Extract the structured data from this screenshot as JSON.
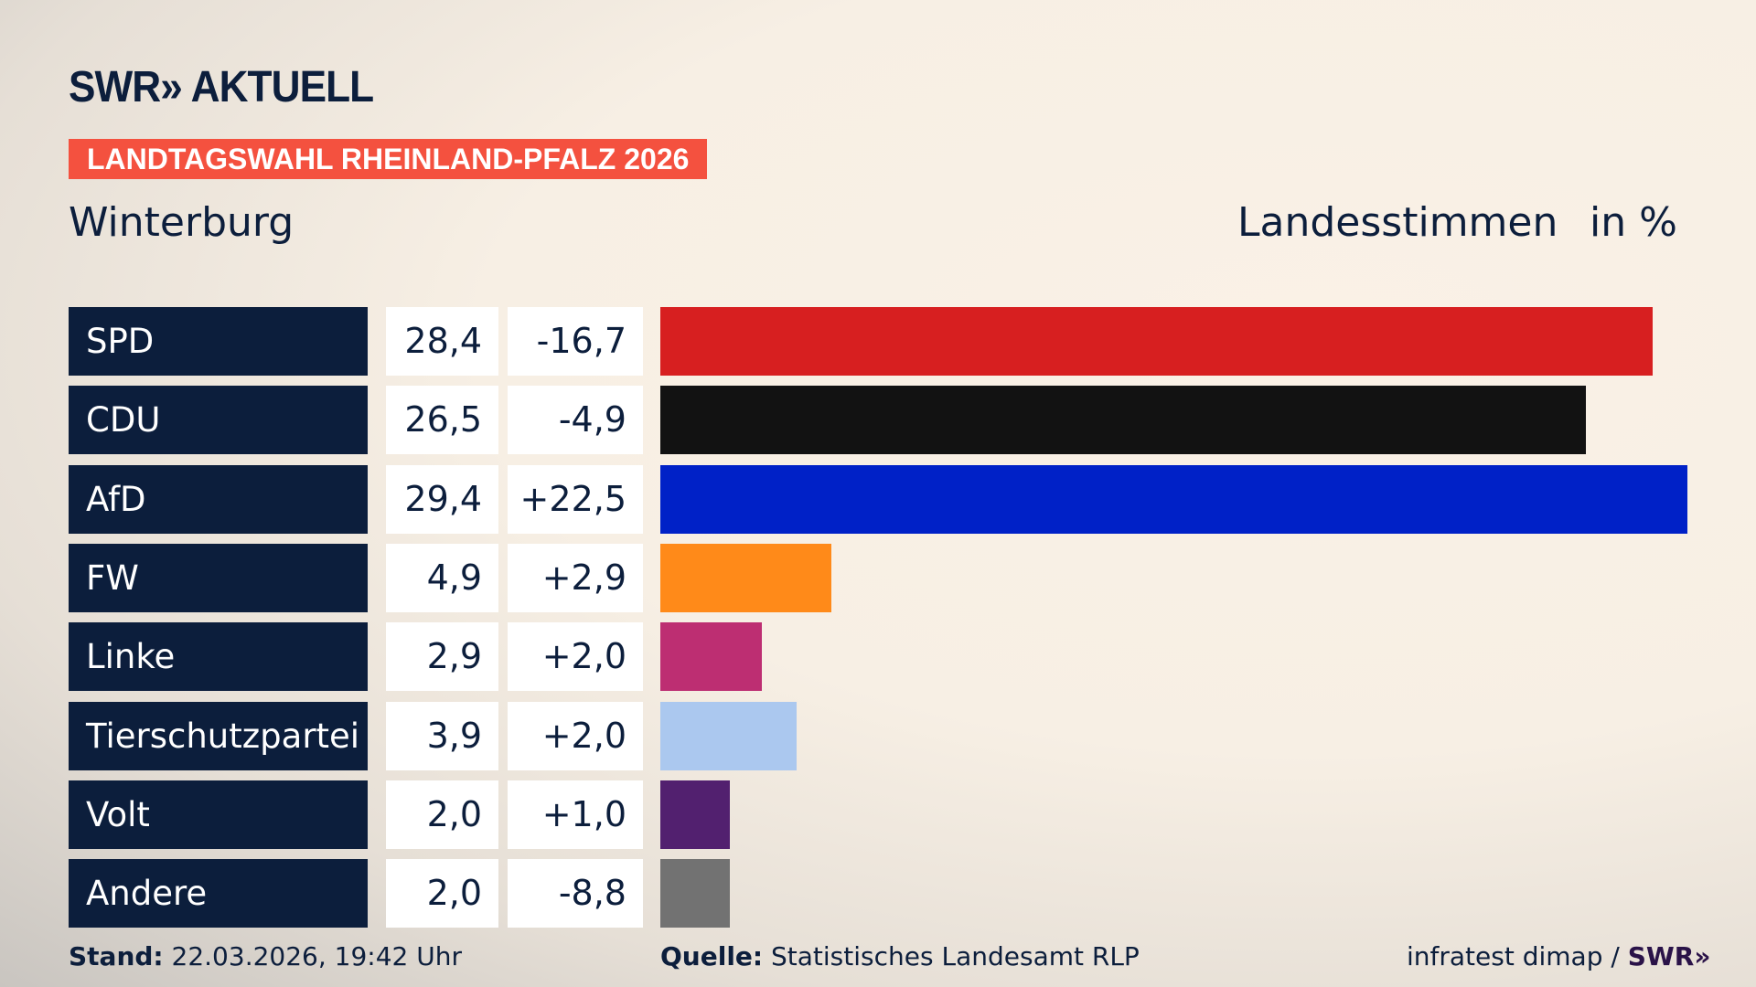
{
  "header": {
    "logo": "SWR» AKTUELL",
    "banner": "LANDTAGSWAHL RHEINLAND-PFALZ 2026",
    "place": "Winterburg",
    "measure": "Landesstimmen",
    "unit": "in %"
  },
  "chart_data": {
    "type": "bar",
    "orientation": "horizontal",
    "title": "Winterburg",
    "ylabel": "Landesstimmen in %",
    "xlim": [
      0,
      29.4
    ],
    "categories": [
      "SPD",
      "CDU",
      "AfD",
      "FW",
      "Linke",
      "Tierschutzpartei",
      "Volt",
      "Andere"
    ],
    "values": [
      "28,4",
      "26,5",
      "29,4",
      "4,9",
      "2,9",
      "3,9",
      "2,0",
      "2,0"
    ],
    "numeric": [
      28.4,
      26.5,
      29.4,
      4.9,
      2.9,
      3.9,
      2.0,
      2.0
    ],
    "diffs": [
      "-16,7",
      "-4,9",
      "+22,5",
      "+2,9",
      "+2,0",
      "+2,0",
      "+1,0",
      "-8,8"
    ],
    "colors": [
      "#d71f20",
      "#121212",
      "#0021c7",
      "#ff8a19",
      "#bd2e72",
      "#abc8ef",
      "#52206f",
      "#727272"
    ]
  },
  "footer": {
    "stand_label": "Stand:",
    "stand": "22.03.2026, 19:42 Uhr",
    "source_label": "Quelle:",
    "source": "Statistisches Landesamt RLP",
    "credit": "infratest dimap / ",
    "credit_logo": "SWR»"
  }
}
